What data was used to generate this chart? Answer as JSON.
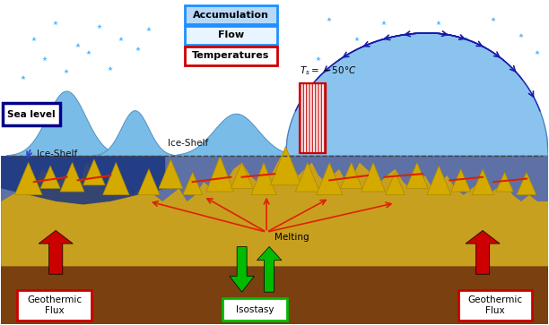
{
  "bg_color": "#ffffff",
  "ice_light": "#7ab8e8",
  "ice_lighter": "#a8d4f0",
  "ice_dark_blue": "#1a3580",
  "ground_yellow": "#d4a820",
  "ground_brown": "#8B5010",
  "sea_color": "#1a3580",
  "red_arrow": "#cc0000",
  "green_arrow": "#00bb00",
  "snow_color": "#55bbff",
  "flow_color": "#1a1aaa",
  "legend": [
    {
      "label": "Accumulation",
      "border": "#1e90ff",
      "bg": "#b8d8f8"
    },
    {
      "label": "Flow",
      "border": "#1e90ff",
      "bg": "#e8f4ff"
    },
    {
      "label": "Temperatures",
      "border": "#cc0000",
      "bg": "#ffffff"
    }
  ]
}
